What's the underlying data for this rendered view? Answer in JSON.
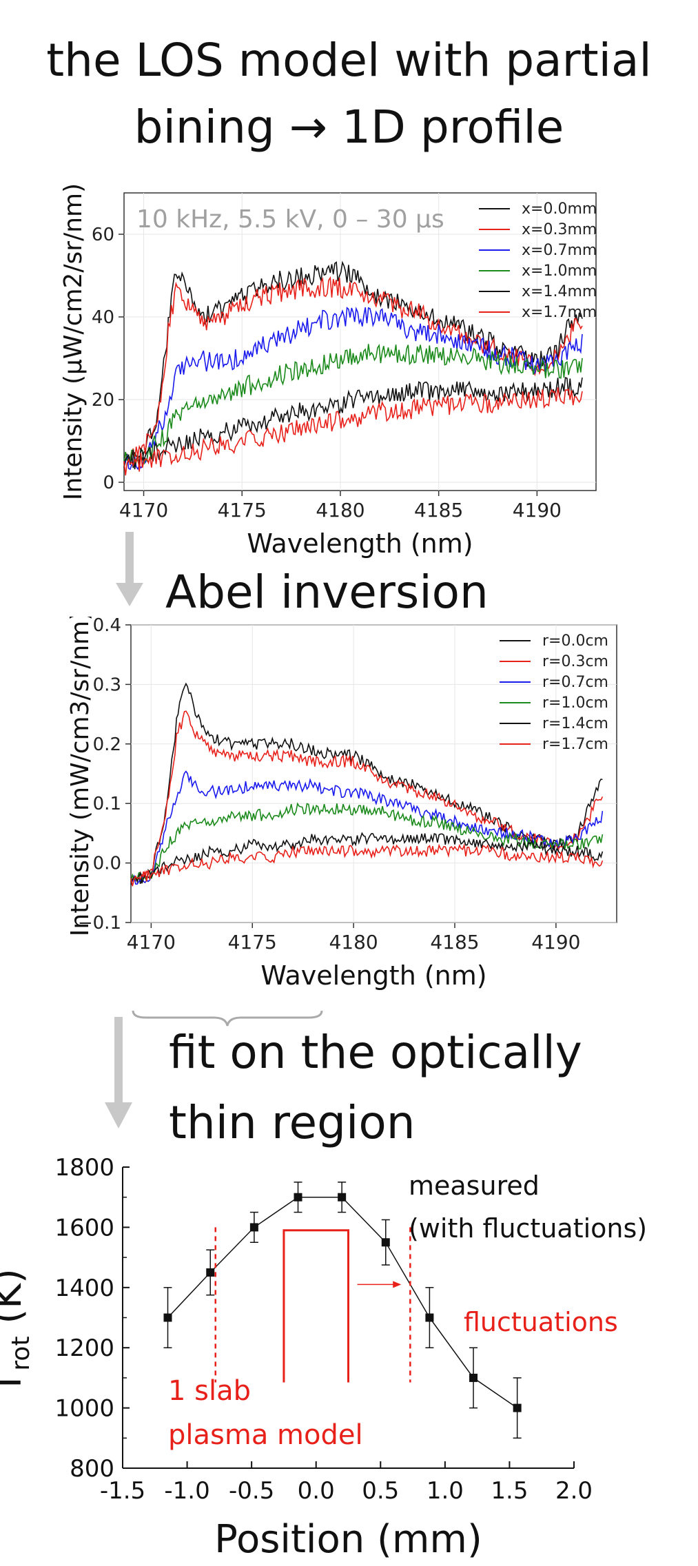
{
  "header": {
    "line1": "the LOS model with partial",
    "line2": "bining → 1D profile"
  },
  "abel_label": "Abel inversion",
  "fit_label": {
    "line1": "fit on the optically",
    "line2": "thin region"
  },
  "colors": {
    "black_series": "#111111",
    "red": "#e8201a",
    "blue": "#1a1aee",
    "green": "#1a8a1a",
    "arrow_gray": "#c8c8c8"
  },
  "chart_data": [
    {
      "type": "line",
      "title": "",
      "annotation": "10 kHz, 5.5 kV, 0 – 30 μs",
      "xlabel": "Wavelength (nm)",
      "ylabel": "Intensity (μW/cm2/sr/nm)",
      "xlim": [
        4169,
        4193
      ],
      "ylim": [
        -2,
        70
      ],
      "xticks": [
        4170,
        4175,
        4180,
        4185,
        4190
      ],
      "yticks": [
        0,
        20,
        40,
        60
      ],
      "legend_position": "top-right",
      "series": [
        {
          "name": "x=0.0mm",
          "color": "#111111",
          "x": [
            4169.0,
            4170.0,
            4170.8,
            4171.3,
            4171.6,
            4172.2,
            4173.0,
            4174.0,
            4175.0,
            4176.0,
            4177.0,
            4178.0,
            4179.0,
            4180.0,
            4181.0,
            4182.0,
            4183.0,
            4184.0,
            4185.0,
            4186.0,
            4187.0,
            4188.0,
            4189.0,
            4190.0,
            4191.0,
            4191.5,
            4192.3
          ],
          "y": [
            5,
            7,
            18,
            40,
            52,
            47,
            40,
            42,
            45,
            47,
            49,
            50,
            50,
            51,
            49,
            45,
            43,
            42,
            39,
            38,
            35,
            33,
            31,
            29,
            31,
            37,
            42
          ]
        },
        {
          "name": "x=0.3mm",
          "color": "#e8201a",
          "x": [
            4169.0,
            4170.0,
            4170.8,
            4171.3,
            4171.6,
            4172.2,
            4173.0,
            4174.0,
            4175.0,
            4176.0,
            4177.0,
            4178.0,
            4179.0,
            4180.0,
            4181.0,
            4182.0,
            4183.0,
            4184.0,
            4185.0,
            4186.0,
            4187.0,
            4188.0,
            4189.0,
            4190.0,
            4191.0,
            4191.5,
            4192.3
          ],
          "y": [
            5,
            7,
            18,
            38,
            46,
            44,
            39,
            40,
            43,
            45,
            46,
            47,
            47,
            47,
            46,
            44,
            42,
            41,
            38,
            37,
            34,
            32,
            30,
            28,
            30,
            34,
            40
          ]
        },
        {
          "name": "x=0.7mm",
          "color": "#1a1aee",
          "x": [
            4169.0,
            4170.0,
            4171.0,
            4171.7,
            4172.5,
            4173.5,
            4175.0,
            4176.0,
            4177.0,
            4178.0,
            4179.0,
            4180.0,
            4181.0,
            4182.0,
            4183.0,
            4184.0,
            4185.0,
            4186.0,
            4187.0,
            4188.0,
            4189.0,
            4190.0,
            4191.0,
            4191.7,
            4192.3
          ],
          "y": [
            5,
            6,
            15,
            27,
            30,
            29,
            30,
            33,
            35,
            37,
            39,
            40,
            40,
            40,
            38,
            36,
            36,
            34,
            33,
            31,
            30,
            28,
            29,
            32,
            34
          ]
        },
        {
          "name": "x=1.0mm",
          "color": "#1a8a1a",
          "x": [
            4169.0,
            4170.0,
            4171.0,
            4172.0,
            4173.0,
            4174.0,
            4175.0,
            4176.0,
            4177.0,
            4178.0,
            4179.0,
            4180.0,
            4181.0,
            4182.0,
            4183.0,
            4184.0,
            4185.0,
            4186.0,
            4187.0,
            4188.0,
            4189.0,
            4190.0,
            4191.0,
            4192.3
          ],
          "y": [
            5,
            6,
            11,
            18,
            20,
            21,
            23,
            24,
            26,
            27,
            28,
            30,
            31,
            31,
            31,
            31,
            31,
            30,
            30,
            29,
            28,
            27,
            27,
            28
          ]
        },
        {
          "name": "x=1.4mm",
          "color": "#111111",
          "x": [
            4169.0,
            4170.0,
            4171.0,
            4172.0,
            4173.0,
            4174.0,
            4175.0,
            4176.0,
            4177.0,
            4178.0,
            4179.0,
            4180.0,
            4181.0,
            4182.0,
            4183.0,
            4184.0,
            4185.0,
            4186.0,
            4187.0,
            4188.0,
            4189.0,
            4190.0,
            4191.0,
            4192.3
          ],
          "y": [
            5,
            6,
            8,
            10,
            11,
            12,
            13,
            15,
            16,
            17,
            18,
            19,
            20,
            21,
            21,
            22,
            22,
            22,
            22,
            22,
            22,
            22,
            23,
            23
          ]
        },
        {
          "name": "x=1.7mm",
          "color": "#e8201a",
          "x": [
            4169.0,
            4170.0,
            4171.0,
            4172.0,
            4173.0,
            4174.0,
            4175.0,
            4176.0,
            4177.0,
            4178.0,
            4179.0,
            4180.0,
            4181.0,
            4182.0,
            4183.0,
            4184.0,
            4185.0,
            4186.0,
            4187.0,
            4188.0,
            4189.0,
            4190.0,
            4191.0,
            4192.3
          ],
          "y": [
            4,
            5,
            6,
            7,
            8,
            9,
            10,
            11,
            12,
            13,
            14,
            15,
            16,
            17,
            17,
            18,
            18,
            19,
            19,
            19,
            20,
            20,
            21,
            21
          ]
        }
      ]
    },
    {
      "type": "line",
      "title": "",
      "xlabel": "Wavelength (nm)",
      "ylabel": "Intensity (mW/cm3/sr/nm)",
      "xlim": [
        4169,
        4193
      ],
      "ylim": [
        -0.1,
        0.4
      ],
      "xticks": [
        4170,
        4175,
        4180,
        4185,
        4190
      ],
      "yticks": [
        -0.1,
        0.0,
        0.1,
        0.2,
        0.3,
        0.4
      ],
      "legend_position": "top-right",
      "series": [
        {
          "name": "r=0.0cm",
          "color": "#111111",
          "x": [
            4169.0,
            4170.0,
            4170.8,
            4171.3,
            4171.7,
            4172.2,
            4173.0,
            4174.0,
            4175.0,
            4176.0,
            4177.0,
            4178.0,
            4179.0,
            4180.0,
            4181.0,
            4182.0,
            4183.0,
            4184.0,
            4185.0,
            4186.0,
            4187.0,
            4188.0,
            4189.0,
            4190.0,
            4191.0,
            4191.7,
            4192.3
          ],
          "y": [
            -0.03,
            -0.02,
            0.1,
            0.25,
            0.31,
            0.25,
            0.21,
            0.2,
            0.2,
            0.2,
            0.2,
            0.19,
            0.18,
            0.18,
            0.16,
            0.14,
            0.13,
            0.12,
            0.1,
            0.09,
            0.07,
            0.05,
            0.04,
            0.03,
            0.04,
            0.1,
            0.15
          ]
        },
        {
          "name": "r=0.3cm",
          "color": "#e8201a",
          "x": [
            4169.0,
            4170.0,
            4170.8,
            4171.3,
            4171.7,
            4172.2,
            4173.0,
            4174.0,
            4175.0,
            4176.0,
            4177.0,
            4178.0,
            4179.0,
            4180.0,
            4181.0,
            4182.0,
            4183.0,
            4184.0,
            4185.0,
            4186.0,
            4187.0,
            4188.0,
            4189.0,
            4190.0,
            4191.0,
            4191.7,
            4192.3
          ],
          "y": [
            -0.03,
            -0.02,
            0.1,
            0.22,
            0.25,
            0.22,
            0.19,
            0.18,
            0.18,
            0.18,
            0.18,
            0.17,
            0.17,
            0.17,
            0.15,
            0.13,
            0.12,
            0.11,
            0.1,
            0.08,
            0.07,
            0.05,
            0.04,
            0.03,
            0.04,
            0.08,
            0.12
          ]
        },
        {
          "name": "r=0.7cm",
          "color": "#1a1aee",
          "x": [
            4169.0,
            4170.0,
            4171.0,
            4171.7,
            4172.5,
            4173.5,
            4175.0,
            4176.0,
            4177.0,
            4178.0,
            4179.0,
            4180.0,
            4181.0,
            4182.0,
            4183.0,
            4184.0,
            4185.0,
            4186.0,
            4187.0,
            4188.0,
            4189.0,
            4190.0,
            4191.0,
            4191.7,
            4192.3
          ],
          "y": [
            -0.03,
            -0.02,
            0.09,
            0.15,
            0.12,
            0.12,
            0.13,
            0.13,
            0.13,
            0.13,
            0.12,
            0.12,
            0.11,
            0.1,
            0.09,
            0.08,
            0.07,
            0.06,
            0.05,
            0.05,
            0.04,
            0.03,
            0.04,
            0.06,
            0.08
          ]
        },
        {
          "name": "r=1.0cm",
          "color": "#1a8a1a",
          "x": [
            4169.0,
            4170.0,
            4171.0,
            4172.0,
            4173.0,
            4174.0,
            4175.0,
            4176.0,
            4177.0,
            4178.0,
            4179.0,
            4180.0,
            4181.0,
            4182.0,
            4183.0,
            4184.0,
            4185.0,
            4186.0,
            4187.0,
            4188.0,
            4189.0,
            4190.0,
            4191.0,
            4192.3
          ],
          "y": [
            -0.03,
            -0.02,
            0.04,
            0.07,
            0.07,
            0.08,
            0.08,
            0.08,
            0.09,
            0.09,
            0.09,
            0.09,
            0.09,
            0.08,
            0.07,
            0.07,
            0.06,
            0.05,
            0.04,
            0.04,
            0.03,
            0.03,
            0.03,
            0.04
          ]
        },
        {
          "name": "r=1.4cm",
          "color": "#111111",
          "x": [
            4169.0,
            4170.0,
            4171.0,
            4172.0,
            4173.0,
            4174.0,
            4175.0,
            4176.0,
            4177.0,
            4178.0,
            4179.0,
            4180.0,
            4181.0,
            4182.0,
            4183.0,
            4184.0,
            4185.0,
            4186.0,
            4187.0,
            4188.0,
            4189.0,
            4190.0,
            4191.0,
            4192.3
          ],
          "y": [
            -0.03,
            -0.02,
            0.0,
            0.01,
            0.02,
            0.02,
            0.03,
            0.03,
            0.03,
            0.04,
            0.04,
            0.04,
            0.04,
            0.04,
            0.04,
            0.04,
            0.04,
            0.03,
            0.03,
            0.03,
            0.03,
            0.02,
            0.02,
            0.01
          ]
        },
        {
          "name": "r=1.7cm",
          "color": "#e8201a",
          "x": [
            4169.0,
            4170.0,
            4171.0,
            4172.0,
            4173.0,
            4174.0,
            4175.0,
            4176.0,
            4177.0,
            4178.0,
            4179.0,
            4180.0,
            4181.0,
            4182.0,
            4183.0,
            4184.0,
            4185.0,
            4186.0,
            4187.0,
            4188.0,
            4189.0,
            4190.0,
            4191.0,
            4192.3
          ],
          "y": [
            -0.03,
            -0.02,
            -0.01,
            0.0,
            0.0,
            0.01,
            0.01,
            0.01,
            0.02,
            0.02,
            0.02,
            0.02,
            0.02,
            0.02,
            0.02,
            0.02,
            0.02,
            0.02,
            0.02,
            0.01,
            0.01,
            0.01,
            0.01,
            0.0
          ]
        }
      ]
    },
    {
      "type": "scatter",
      "title": "",
      "xlabel": "Position (mm)",
      "ylabel": "T",
      "ylabel_sub": "rot",
      "ylabel_unit": " (K)",
      "xlim": [
        -1.5,
        2.0
      ],
      "ylim": [
        800,
        1800
      ],
      "xticks": [
        -1.5,
        -1.0,
        -0.5,
        0.0,
        0.5,
        1.0,
        1.5,
        2.0
      ],
      "xtick_labels": [
        "-1.5",
        "-1.0",
        "-0.5",
        "0.0",
        "0.5",
        "1.0",
        "1.5",
        "2.0"
      ],
      "yticks": [
        800,
        1000,
        1200,
        1400,
        1600,
        1800
      ],
      "grid": false,
      "series": [
        {
          "name": "measured",
          "x": [
            -1.15,
            -0.82,
            -0.48,
            -0.14,
            0.2,
            0.54,
            0.88,
            1.22,
            1.56
          ],
          "y": [
            1300,
            1450,
            1600,
            1700,
            1700,
            1550,
            1300,
            1100,
            1000
          ],
          "yerr": [
            100,
            75,
            50,
            50,
            50,
            75,
            100,
            100,
            100
          ]
        }
      ],
      "annotations": {
        "measured_line1": "measured",
        "measured_line2": "(with fluctuations)",
        "fluctuations": "fluctuations",
        "slab_line1": "1 slab",
        "slab_line2": "plasma model"
      },
      "slab_model": {
        "x_left": -0.25,
        "x_right": 0.25,
        "top": 1590,
        "bottom": 1085
      },
      "fluctuation_bounds_x": [
        -0.78,
        0.73
      ],
      "fluctuation_bounds_y": [
        1600,
        1085
      ],
      "fluctuation_arrow": {
        "x_from": 0.32,
        "x_to": 0.66,
        "y": 1410
      }
    }
  ]
}
